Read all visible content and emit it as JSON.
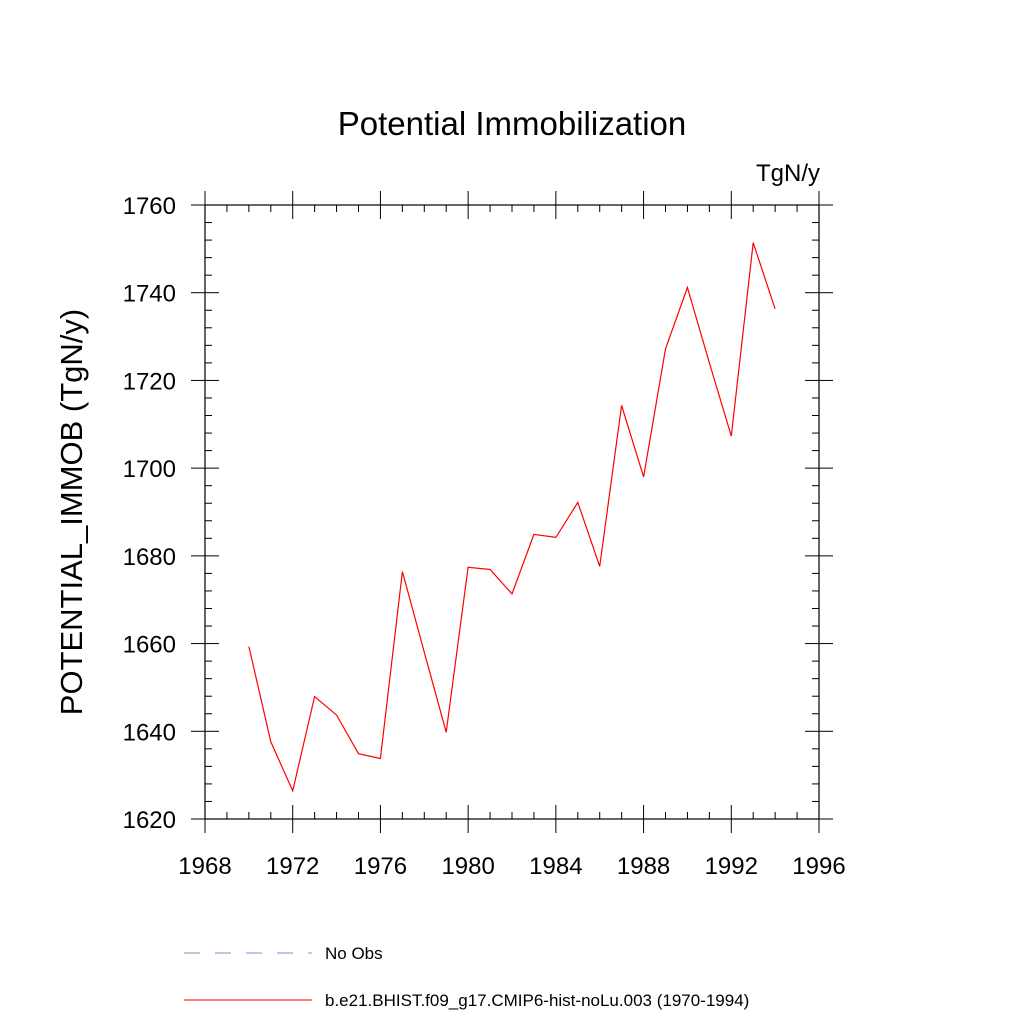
{
  "chart_data": {
    "type": "line",
    "title": "Potential Immobilization",
    "units_label": "TgN/y",
    "xlabel": "",
    "ylabel": "POTENTIAL_IMMOB  (TgN/y)",
    "xlim": [
      1968,
      1996
    ],
    "ylim": [
      1620,
      1760
    ],
    "x_ticks": [
      1968,
      1972,
      1976,
      1980,
      1984,
      1988,
      1992,
      1996
    ],
    "y_ticks": [
      1620,
      1640,
      1660,
      1680,
      1700,
      1720,
      1740,
      1760
    ],
    "grid": false,
    "legend_position": "bottom",
    "series": [
      {
        "name": "b.e21.BHIST.f09_g17.CMIP6-hist-noLu.003 (1970-1994)",
        "color": "#ff0000",
        "line_style": "solid",
        "x": [
          1970,
          1971,
          1972,
          1973,
          1974,
          1975,
          1976,
          1977,
          1978,
          1979,
          1980,
          1981,
          1982,
          1983,
          1984,
          1985,
          1986,
          1987,
          1988,
          1989,
          1990,
          1991,
          1992,
          1993,
          1994
        ],
        "y": [
          1659.3,
          1637.6,
          1626.4,
          1647.9,
          1643.7,
          1634.9,
          1633.8,
          1676.4,
          1658.0,
          1639.8,
          1677.4,
          1676.9,
          1671.3,
          1684.9,
          1684.2,
          1692.2,
          1677.6,
          1714.3,
          1698.0,
          1727.2,
          1741.2,
          1724.0,
          1707.3,
          1751.4,
          1736.3
        ]
      }
    ],
    "legend": [
      {
        "label": "No Obs",
        "color": "#8a8acf",
        "line_style": "dashed"
      },
      {
        "label": "b.e21.BHIST.f09_g17.CMIP6-hist-noLu.003 (1970-1994)",
        "color": "#ff0000",
        "line_style": "solid"
      }
    ]
  }
}
